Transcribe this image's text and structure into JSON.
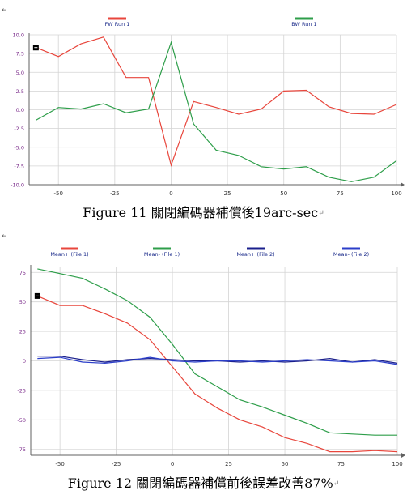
{
  "para_mark": "↵",
  "figures": [
    {
      "caption": "Figure 11  關閉編碼器補償後19arc-sec",
      "caption_mark": "↵"
    },
    {
      "caption": "Figure 12  關閉編碼器補償前後誤差改善87%",
      "caption_mark": "↵"
    }
  ],
  "colors": {
    "red": "#e8463c",
    "green": "#2e9e4a",
    "navy": "#1a1f8c",
    "blue": "#2b3ec9",
    "axis": "#606060",
    "tick_y": "#7a2a8a",
    "grid": "#d4d4d4"
  },
  "chart_data": [
    {
      "type": "line",
      "xlim": [
        -63,
        100
      ],
      "ylim": [
        -10,
        10
      ],
      "x_ticks": [
        -50,
        -25,
        0,
        25,
        50,
        75,
        100
      ],
      "y_ticks": [
        10.0,
        7.5,
        5.0,
        2.5,
        0.0,
        -2.5,
        -5.0,
        -7.5,
        -10.0
      ],
      "y_tick_labels": [
        "10.0",
        "7.5",
        "5.0",
        "2.5",
        "0.0",
        "-2.5",
        "-5.0",
        "-7.5",
        "-10.0"
      ],
      "legend_position": "top",
      "grid": true,
      "series": [
        {
          "name": "FW Run 1",
          "color": "#e8463c",
          "x": [
            -60,
            -50,
            -40,
            -30,
            -20,
            -10,
            0,
            10,
            20,
            30,
            40,
            50,
            60,
            70,
            80,
            90,
            100
          ],
          "y": [
            8.3,
            7.1,
            8.8,
            9.7,
            4.3,
            4.3,
            -7.4,
            1.1,
            0.3,
            -0.6,
            0.1,
            2.5,
            2.6,
            0.4,
            -0.5,
            -0.6,
            0.7
          ]
        },
        {
          "name": "BW Run 1",
          "color": "#2e9e4a",
          "x": [
            -60,
            -50,
            -40,
            -30,
            -20,
            -10,
            0,
            10,
            20,
            30,
            40,
            50,
            60,
            70,
            80,
            90,
            100
          ],
          "y": [
            -1.4,
            0.3,
            0.1,
            0.8,
            -0.4,
            0.1,
            9.0,
            -1.9,
            -5.4,
            -6.1,
            -7.6,
            -7.9,
            -7.6,
            -9.0,
            -9.6,
            -9.0,
            -6.8
          ]
        }
      ]
    },
    {
      "type": "line",
      "xlim": [
        -63,
        100
      ],
      "ylim": [
        -80,
        80
      ],
      "x_ticks": [
        -50,
        -25,
        0,
        25,
        50,
        75,
        100
      ],
      "y_ticks": [
        75,
        50,
        25,
        0,
        -25,
        -50,
        -75
      ],
      "y_tick_labels": [
        "75",
        "50",
        "25",
        "0",
        "-25",
        "-50",
        "-75"
      ],
      "legend_position": "top",
      "grid": true,
      "series": [
        {
          "name": "Mean+ (File 1)",
          "color": "#e8463c",
          "x": [
            -60,
            -50,
            -40,
            -30,
            -20,
            -10,
            0,
            10,
            20,
            30,
            40,
            50,
            60,
            70,
            80,
            90,
            100
          ],
          "y": [
            55,
            47,
            47,
            40,
            32,
            18,
            -5,
            -28,
            -40,
            -50,
            -56,
            -65,
            -70,
            -77,
            -77,
            -76,
            -77
          ]
        },
        {
          "name": "Mean- (File 1)",
          "color": "#2e9e4a",
          "x": [
            -60,
            -50,
            -40,
            -30,
            -20,
            -10,
            0,
            10,
            20,
            30,
            40,
            50,
            60,
            70,
            80,
            90,
            100
          ],
          "y": [
            78,
            74,
            70,
            61,
            51,
            37,
            14,
            -11,
            -22,
            -33,
            -39,
            -46,
            -53,
            -61,
            -62,
            -63,
            -63
          ]
        },
        {
          "name": "Mean+ (File 2)",
          "color": "#1a1f8c",
          "x": [
            -60,
            -50,
            -40,
            -30,
            -20,
            -10,
            0,
            10,
            20,
            30,
            40,
            50,
            60,
            70,
            80,
            90,
            100
          ],
          "y": [
            4,
            4,
            1,
            -1,
            1,
            2,
            1,
            0,
            0,
            -1,
            0,
            -1,
            0,
            2,
            -1,
            1,
            -2
          ]
        },
        {
          "name": "Mean- (File 2)",
          "color": "#2b3ec9",
          "x": [
            -60,
            -50,
            -40,
            -30,
            -20,
            -10,
            0,
            10,
            20,
            30,
            40,
            50,
            60,
            70,
            80,
            90,
            100
          ],
          "y": [
            2,
            3,
            -1,
            -2,
            0,
            3,
            0,
            -1,
            0,
            0,
            -1,
            0,
            1,
            0,
            -1,
            0,
            -3
          ]
        }
      ]
    }
  ]
}
